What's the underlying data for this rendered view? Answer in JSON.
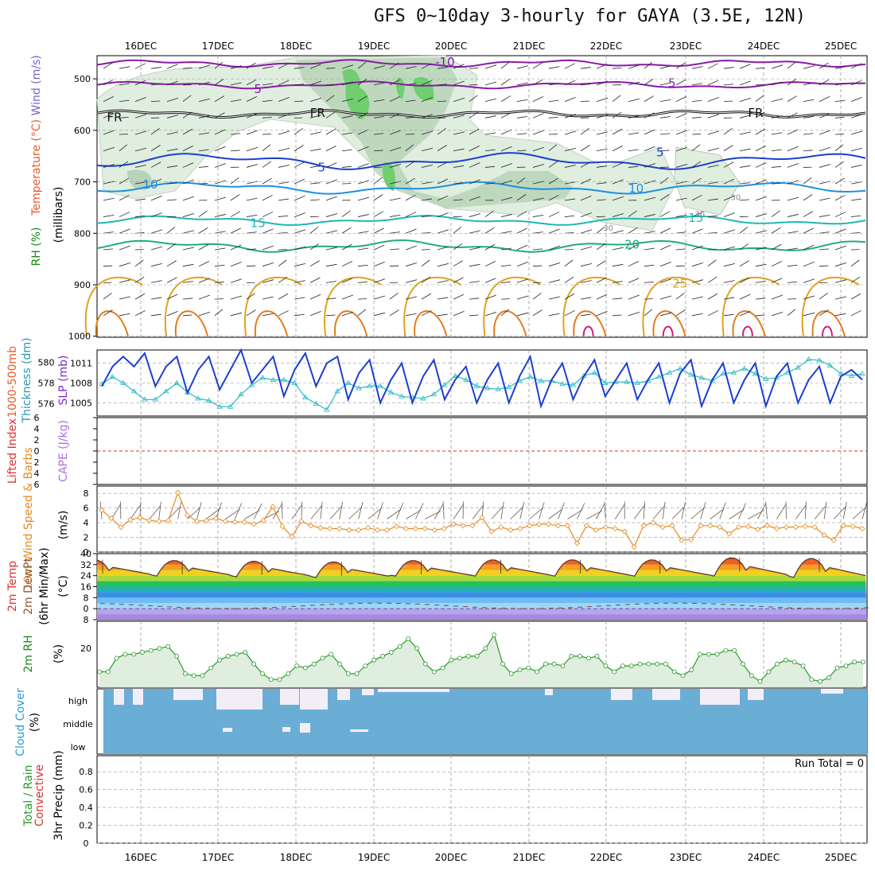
{
  "page": {
    "title": "GFS 0~10day 3-hourly for GAYA (3.5E, 12N)"
  },
  "colors": {
    "frame": "#000000",
    "grid": "#9a9a9a",
    "purple": "#8a1aa8",
    "blue": "#1c3fcf",
    "skyblue": "#1f8fe0",
    "teal": "#1fb8b0",
    "green": "#1fae78",
    "gold": "#e0a21c",
    "orange": "#e07c1c",
    "magenta": "#d61a7a",
    "rhfill": "#dfeedf",
    "rhfill2": "#b9d3b9",
    "rhfill3": "#6fcf6f",
    "slp": "#1c3fcf",
    "thick": "#29b9c2",
    "wind10": "#e58a1f",
    "rh2m": "#2a9a2a",
    "cloud": "#6aaed6",
    "cloudgap": "#f2eef8",
    "lifted": "#e03030"
  },
  "chart_data": {
    "type": "meteogram",
    "title": "GFS 0~10day 3-hourly for GAYA (3.5E, 12N)",
    "dates": [
      "16DEC",
      "17DEC",
      "18DEC",
      "19DEC",
      "20DEC",
      "21DEC",
      "22DEC",
      "23DEC",
      "24DEC",
      "25DEC"
    ],
    "time_range_days": [
      15.58,
      25.25
    ],
    "upper_air": {
      "ylabel_parts": [
        "RH (%)",
        "Temperature (°C)",
        "Wind (m/s)",
        "(millibars)"
      ],
      "yticks": [
        500,
        600,
        700,
        800,
        900,
        1000
      ],
      "ylim": [
        455,
        1002
      ],
      "isotherm_labels": [
        {
          "text": "-10",
          "t": 19.95,
          "p": 467
        },
        {
          "text": "5",
          "t": 22.8,
          "p": 508
        },
        {
          "text": "5",
          "t": 17.6,
          "p": 520
        },
        {
          "text": "FR",
          "t": 15.8,
          "p": 575
        },
        {
          "text": "FR",
          "t": 18.35,
          "p": 566
        },
        {
          "text": "FR",
          "t": 23.85,
          "p": 566
        },
        {
          "text": "5",
          "t": 18.4,
          "p": 672
        },
        {
          "text": "5",
          "t": 22.65,
          "p": 643
        },
        {
          "text": "10",
          "t": 16.25,
          "p": 705
        },
        {
          "text": "10",
          "t": 22.35,
          "p": 713
        },
        {
          "text": "15",
          "t": 17.6,
          "p": 780
        },
        {
          "text": "15",
          "t": 23.1,
          "p": 770
        },
        {
          "text": "20",
          "t": 22.3,
          "p": 822
        },
        {
          "text": "25",
          "t": 22.9,
          "p": 898
        },
        {
          "text": "30",
          "t": 23.15,
          "p": 760
        },
        {
          "text": "30",
          "t": 22.0,
          "p": 787
        },
        {
          "text": "30",
          "t": 23.6,
          "p": 728
        }
      ]
    },
    "slp_thickness": {
      "ylabel_parts": [
        "1000-500mb",
        "Thickness (dm)",
        "SLP (mb)"
      ],
      "thickness_ticks": [
        576,
        578,
        580
      ],
      "slp_ticks": [
        1005,
        1008,
        1011
      ],
      "slp_range": [
        1003,
        1013
      ],
      "slp": [
        1007.5,
        1010.5,
        1012,
        1010.5,
        1012.5,
        1007.5,
        1010.5,
        1012,
        1006.5,
        1010,
        1012,
        1007,
        1010,
        1013,
        1008,
        1010,
        1012,
        1006,
        1010,
        1012.5,
        1007.5,
        1011,
        1012,
        1005.5,
        1009.5,
        1011.5,
        1005,
        1008.5,
        1011,
        1005,
        1009,
        1011.5,
        1005.5,
        1008.5,
        1010.5,
        1005,
        1008.5,
        1011,
        1005,
        1009,
        1012,
        1004.5,
        1008.5,
        1011,
        1005.5,
        1009,
        1011.5,
        1006,
        1008.5,
        1011,
        1005.5,
        1008.5,
        1011,
        1005,
        1009.5,
        1011.5,
        1004.5,
        1008.5,
        1011,
        1005,
        1008.5,
        1011,
        1004.5,
        1009,
        1011,
        1005,
        1008.5,
        1010.5,
        1005,
        1009,
        1010,
        1008.5
      ],
      "thickness": [
        577.9,
        578.6,
        578.0,
        577.2,
        576.4,
        576.4,
        577.2,
        578.0,
        577.1,
        576.5,
        576.3,
        575.7,
        575.7,
        576.9,
        577.8,
        578.5,
        578.3,
        578.3,
        578.0,
        576.6,
        576.0,
        575.4,
        577.2,
        578.0,
        577.5,
        577.7,
        577.7,
        577.1,
        576.7,
        576.6,
        576.5,
        576.9,
        577.8,
        578.7,
        578.3,
        577.7,
        577.5,
        577.4,
        577.6,
        578.2,
        578.6,
        578.2,
        578.2,
        577.9,
        577.8,
        578.7,
        579.0,
        578.0,
        578.1,
        578.1,
        578.0,
        578.2,
        578.6,
        579.0,
        579.4,
        578.8,
        578.5,
        578.2,
        578.9,
        579.0,
        579.4,
        578.9,
        578.4,
        578.5,
        579.0,
        579.5,
        580.3,
        580.2,
        579.7,
        578.9,
        578.7,
        578.9
      ]
    },
    "cape_li": {
      "ylabel_parts": [
        "Lifted Index",
        "CAPE (J/kg)"
      ],
      "yticks": [
        6,
        4,
        2,
        0,
        -2,
        -4,
        -6
      ],
      "ytick_labels": [
        "6",
        "4",
        "2",
        "0",
        "2",
        "4",
        "6"
      ],
      "lifted_index_zero_line": 0
    },
    "wind10m": {
      "ylabel_parts": [
        "10m Wind Speed & Barbs",
        "(m/s)"
      ],
      "yticks": [
        0,
        2,
        4,
        6,
        8
      ],
      "ylim": [
        0,
        9
      ],
      "speed": [
        5.7,
        4.6,
        3.4,
        4.4,
        4.7,
        4.3,
        4.2,
        4.3,
        8.1,
        5.0,
        4.2,
        4.3,
        4.6,
        4.2,
        4.1,
        4.1,
        3.8,
        4.3,
        6.2,
        3.5,
        2.1,
        4.2,
        3.6,
        3.3,
        3.2,
        3.2,
        3.0,
        3.0,
        3.3,
        3.0,
        3.0,
        3.5,
        3.2,
        3.2,
        3.2,
        3.0,
        3.2,
        3.8,
        3.6,
        3.6,
        4.7,
        2.8,
        3.4,
        3.0,
        3.2,
        3.6,
        3.8,
        3.8,
        3.6,
        3.6,
        1.2,
        3.6,
        3.0,
        3.4,
        3.2,
        2.8,
        0.7,
        3.6,
        4.0,
        3.4,
        3.6,
        1.6,
        1.7,
        3.6,
        3.6,
        3.4,
        2.5,
        3.4,
        3.5,
        3.1,
        3.6,
        3.2,
        3.4,
        3.4,
        3.5,
        3.4,
        2.3,
        1.6,
        3.6,
        3.5,
        3.2
      ]
    },
    "temp2m": {
      "ylabel_parts": [
        "2m Temp",
        "2m DewPt",
        "(6hr Min/Max)",
        "(°C)"
      ],
      "yticks": [
        -8,
        0,
        8,
        16,
        24,
        32,
        40
      ],
      "ylim": [
        -8,
        40
      ],
      "daily_min": [
        24.0,
        23.5,
        23.0,
        22.5,
        23.5,
        23.5,
        23.5,
        23.5,
        23.5,
        22.5
      ],
      "daily_max": [
        35.5,
        35.0,
        34.5,
        34.0,
        35.0,
        35.5,
        35.5,
        35.5,
        37.0,
        36.5
      ]
    },
    "rh2m": {
      "ylabel_parts": [
        "2m RH",
        "(%)"
      ],
      "yticks": [
        20
      ],
      "ylim": [
        0,
        34
      ],
      "values": [
        8,
        8,
        15,
        17,
        17,
        18,
        19,
        20,
        21,
        16,
        7,
        6,
        6,
        10,
        14,
        16,
        17,
        18,
        12,
        7,
        4,
        4,
        7,
        11,
        10,
        12,
        15,
        17,
        12,
        7,
        7,
        11,
        14,
        16,
        18,
        21,
        25,
        20,
        12,
        8,
        10,
        14,
        15,
        16,
        16,
        20,
        27,
        12,
        7,
        9,
        10,
        8,
        12,
        12,
        11,
        16,
        16,
        15,
        16,
        11,
        8,
        11,
        11,
        12,
        12,
        12,
        12,
        8,
        6,
        9,
        17,
        17,
        17,
        19,
        19,
        12,
        6,
        3,
        8,
        12,
        14,
        13,
        11,
        4,
        3,
        5,
        10,
        11,
        13,
        13
      ]
    },
    "cloud": {
      "ylabel_parts": [
        "Cloud Cover",
        "(%)"
      ],
      "levels": [
        "high",
        "middle",
        "low"
      ]
    },
    "precip": {
      "ylabel_parts": [
        "Total / Rain",
        "Convective",
        "3hr Precip (mm)"
      ],
      "yticks": [
        0,
        0.2,
        0.4,
        0.6,
        0.8
      ],
      "ylim": [
        0,
        0.98
      ],
      "run_total_label": "Run Total = 0"
    }
  }
}
